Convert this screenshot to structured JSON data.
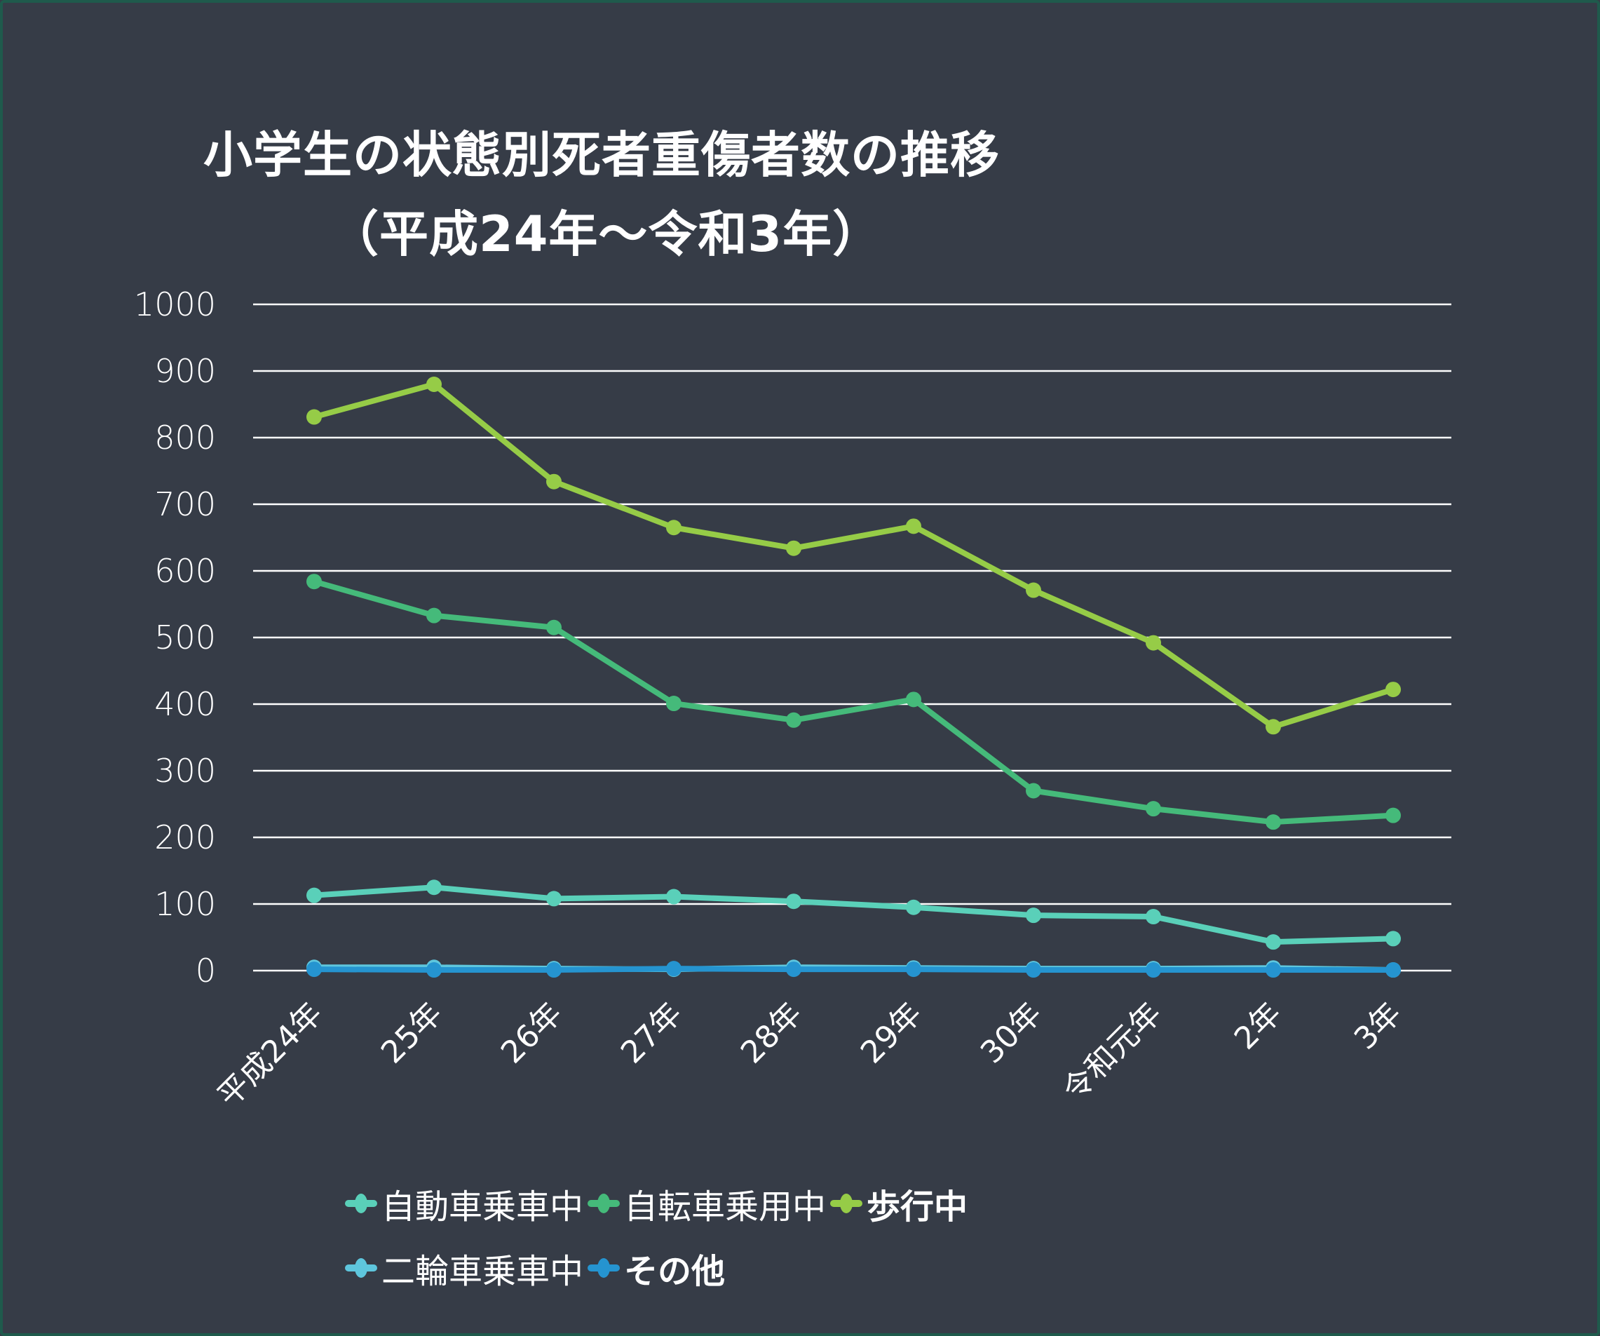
{
  "title_line1": "小学生の状態別死者重傷者数の推移",
  "title_line2": "（平成24年～令和3年）",
  "chart_data": {
    "type": "line",
    "title": "小学生の状態別死者重傷者数の推移（平成24年～令和3年）",
    "xlabel": "",
    "ylabel": "",
    "ylim": [
      0,
      1000
    ],
    "yticks": [
      "0",
      "100",
      "200",
      "300",
      "400",
      "500",
      "600",
      "700",
      "800",
      "900",
      "1000"
    ],
    "grid": true,
    "legend_position": "bottom",
    "categories": [
      "平成24年",
      "25年",
      "26年",
      "27年",
      "28年",
      "29年",
      "30年",
      "令和元年",
      "2年",
      "3年"
    ],
    "series": [
      {
        "name": "自動車乗車中",
        "color": "#5ad0b9",
        "bold": false,
        "values": [
          113,
          125,
          108,
          111,
          104,
          95,
          83,
          81,
          43,
          48
        ]
      },
      {
        "name": "自転車乗用中",
        "color": "#45ba7a",
        "bold": false,
        "values": [
          584,
          533,
          515,
          401,
          376,
          407,
          270,
          243,
          223,
          233
        ]
      },
      {
        "name": "歩行中",
        "color": "#96cc47",
        "bold": true,
        "values": [
          831,
          880,
          734,
          665,
          634,
          667,
          571,
          492,
          366,
          422
        ]
      },
      {
        "name": "二輪車乗車中",
        "color": "#5ec6dd",
        "bold": false,
        "values": [
          5,
          5,
          3,
          2,
          5,
          4,
          3,
          3,
          4,
          1
        ]
      },
      {
        "name": "その他",
        "color": "#2594d0",
        "bold": true,
        "values": [
          2,
          1,
          1,
          3,
          2,
          2,
          1,
          1,
          1,
          1
        ]
      }
    ]
  }
}
